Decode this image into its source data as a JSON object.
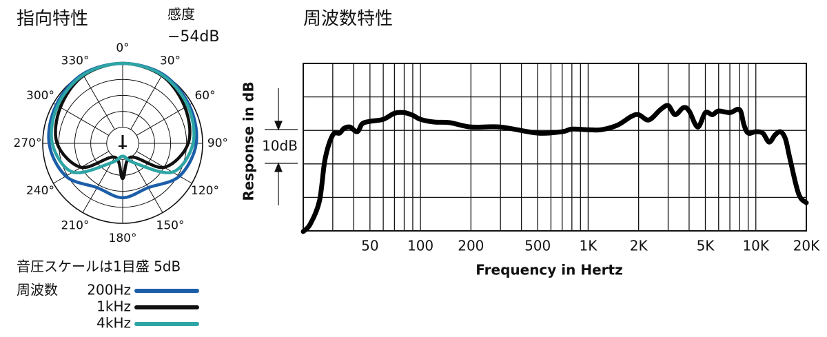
{
  "chart_data": [
    {
      "type": "polar",
      "title": "指向特性",
      "sensitivity_label": "感度",
      "sensitivity_value": "−54dB",
      "scale_note": "音圧スケールは1目盛 5dB",
      "legend_title": "周波数",
      "theta": [
        0,
        30,
        60,
        90,
        120,
        150,
        180,
        210,
        240,
        270,
        300,
        330
      ],
      "theta_ticks": [
        {
          "value": 0,
          "label": "0°"
        },
        {
          "value": 30,
          "label": "30°"
        },
        {
          "value": 60,
          "label": "60°"
        },
        {
          "value": 90,
          "label": "90°"
        },
        {
          "value": 120,
          "label": "120°"
        },
        {
          "value": 150,
          "label": "150°"
        },
        {
          "value": 180,
          "label": "180°"
        },
        {
          "value": 210,
          "label": "210°"
        },
        {
          "value": 240,
          "label": "240°"
        },
        {
          "value": 270,
          "label": "270°"
        },
        {
          "value": 300,
          "label": "300°"
        },
        {
          "value": 330,
          "label": "330°"
        }
      ],
      "rlim": [
        -25,
        0
      ],
      "rticks": [
        -20,
        -15,
        -10,
        -5,
        0
      ],
      "series": [
        {
          "name": "200Hz",
          "color": "#1c5ea8",
          "values": [
            0,
            0,
            -1,
            -2,
            -4.5,
            -9,
            -8,
            -9,
            -4.5,
            -2,
            -1,
            0
          ]
        },
        {
          "name": "1kHz",
          "color": "#111111",
          "values": [
            0,
            -0.5,
            -2.5,
            -4.5,
            -10,
            -20,
            -14,
            -20,
            -10,
            -4.5,
            -2.5,
            -0.5
          ]
        },
        {
          "name": "4kHz",
          "color": "#2ea5a5",
          "values": [
            0,
            -0.3,
            -1.5,
            -3,
            -7,
            -18,
            -21,
            -18,
            -7,
            -3,
            -1.5,
            -0.3
          ]
        }
      ]
    },
    {
      "type": "line",
      "title": "周波数特性",
      "x_label": "Frequency in Hertz",
      "y_label": "Response in dB",
      "scale_annotation": "10dB",
      "log_x": true,
      "color": "#000000",
      "grid": true,
      "xlim": [
        20,
        20000
      ],
      "ylim": [
        -30,
        20
      ],
      "xticks": [
        50,
        100,
        200,
        500,
        {
          "value": 1000,
          "label": "1K"
        },
        {
          "value": 2000,
          "label": "2K"
        },
        {
          "value": 5000,
          "label": "5K"
        },
        {
          "value": 10000,
          "label": "10K"
        },
        {
          "value": 20000,
          "label": "20K"
        }
      ],
      "xminor": [
        30,
        40,
        60,
        70,
        80,
        90,
        300,
        400,
        600,
        700,
        800,
        900,
        3000,
        4000,
        6000,
        7000,
        8000,
        9000
      ],
      "yticks": [
        -30,
        -20,
        -10,
        0,
        10,
        20
      ],
      "x": [
        20,
        22,
        25,
        27,
        30,
        33,
        35,
        38,
        42,
        45,
        50,
        60,
        70,
        80,
        90,
        100,
        120,
        150,
        200,
        300,
        500,
        700,
        800,
        1000,
        1200,
        1500,
        1800,
        2000,
        2300,
        2700,
        3000,
        3300,
        3700,
        4000,
        4500,
        5000,
        5500,
        6000,
        7000,
        8000,
        8500,
        9000,
        10000,
        11000,
        12000,
        13000,
        14000,
        15000,
        16000,
        18000,
        20000
      ],
      "values": [
        -30.2,
        -28,
        -21,
        -8.6,
        -1.4,
        -0.8,
        0.6,
        1,
        -0.4,
        2,
        2.7,
        3.3,
        5.1,
        5.3,
        4.5,
        3.3,
        2.5,
        2.3,
        1,
        1,
        -0.8,
        -0.4,
        0.4,
        0.2,
        0.2,
        1.6,
        4.1,
        4.7,
        3.1,
        6.2,
        7.4,
        4.7,
        6.8,
        5.8,
        1,
        5.3,
        4.7,
        5.8,
        5.3,
        6.2,
        1.6,
        -0.8,
        -0.4,
        -0.8,
        -3.5,
        -1.4,
        -0.4,
        -2.5,
        -8.6,
        -19,
        -21.6
      ]
    }
  ]
}
